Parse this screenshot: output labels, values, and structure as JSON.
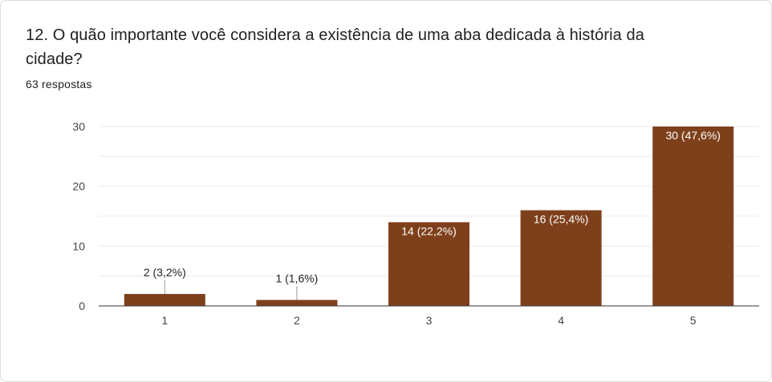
{
  "question": {
    "title": "12. O quão importante você considera a existência de uma aba dedicada à história da cidade?",
    "responses": "63 respostas"
  },
  "colors": {
    "bar": "#7e401b",
    "grid": "#ebebeb",
    "axis": "#333333",
    "label_outside": "#222222",
    "label_inside": "#ffffff"
  },
  "chart_data": {
    "type": "bar",
    "categories": [
      "1",
      "2",
      "3",
      "4",
      "5"
    ],
    "values": [
      2,
      1,
      14,
      16,
      30
    ],
    "data_labels": [
      "2 (3,2%)",
      "1 (1,6%)",
      "14 (22,2%)",
      "16 (25,4%)",
      "30 (47,6%)"
    ],
    "yticks": [
      0,
      10,
      20,
      30
    ],
    "ylim": [
      0,
      30
    ],
    "grid": true,
    "legend": "none"
  }
}
